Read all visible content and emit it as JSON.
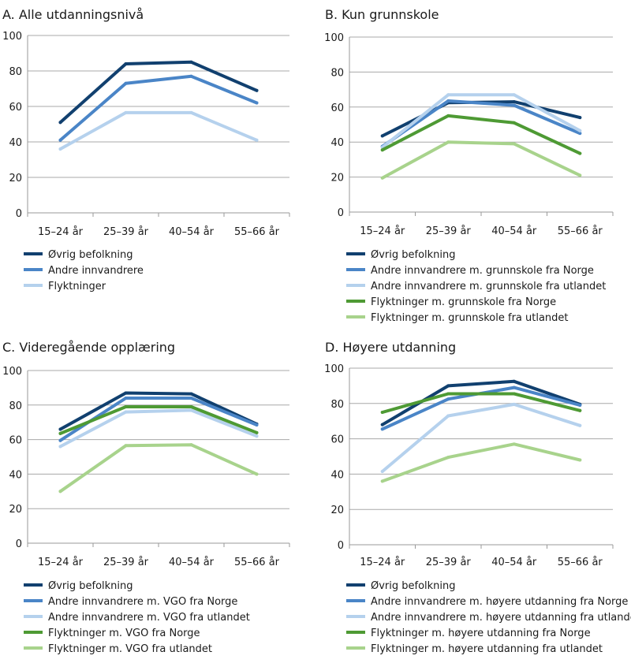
{
  "chart_data": [
    {
      "type": "line",
      "title": "A. Alle utdanningsnivå",
      "categories": [
        "15–24 år",
        "25–39 år",
        "40–54 år",
        "55–66 år"
      ],
      "ylim": [
        0,
        100
      ],
      "yticks": [
        0,
        20,
        40,
        60,
        80,
        100
      ],
      "grid": true,
      "legend": "bottom",
      "series": [
        {
          "name": "Øvrig befolkning",
          "color": "#11406f",
          "values": [
            51,
            84,
            85,
            69
          ]
        },
        {
          "name": "Andre innvandrere",
          "color": "#4a85c7",
          "values": [
            41,
            73,
            77,
            62
          ]
        },
        {
          "name": "Flyktninger",
          "color": "#b5d1ed",
          "values": [
            36,
            56.5,
            56.5,
            41
          ]
        }
      ]
    },
    {
      "type": "line",
      "title": "B. Kun grunnskole",
      "categories": [
        "15–24 år",
        "25–39 år",
        "40–54 år",
        "55–66 år"
      ],
      "ylim": [
        0,
        100
      ],
      "yticks": [
        0,
        20,
        40,
        60,
        80,
        100
      ],
      "grid": true,
      "legend": "bottom",
      "series": [
        {
          "name": "Øvrig befolkning",
          "color": "#11406f",
          "values": [
            43.5,
            62.5,
            63,
            54
          ]
        },
        {
          "name": "Andre innvandrere m. grunnskole fra Norge",
          "color": "#4a85c7",
          "values": [
            37.5,
            63.5,
            61,
            45
          ]
        },
        {
          "name": "Andre innvandrere m. grunnskole fra utlandet",
          "color": "#b5d1ed",
          "values": [
            37,
            67,
            67,
            46.5
          ]
        },
        {
          "name": "Flyktninger m. grunnskole fra Norge",
          "color": "#4e9a34",
          "values": [
            35.5,
            55,
            51,
            33.5
          ]
        },
        {
          "name": "Flyktninger m. grunnskole fra utlandet",
          "color": "#a8d38c",
          "values": [
            19.5,
            40,
            39,
            21
          ]
        }
      ]
    },
    {
      "type": "line",
      "title": "C. Videregående opplæring",
      "categories": [
        "15–24 år",
        "25–39 år",
        "40–54 år",
        "55–66 år"
      ],
      "ylim": [
        0,
        100
      ],
      "yticks": [
        0,
        20,
        40,
        60,
        80,
        100
      ],
      "grid": true,
      "legend": "bottom",
      "series": [
        {
          "name": "Øvrig befolkning",
          "color": "#11406f",
          "values": [
            66,
            87,
            86.5,
            69
          ]
        },
        {
          "name": "Andre innvandrere m. VGO fra Norge",
          "color": "#4a85c7",
          "values": [
            59.5,
            84,
            84,
            68.5
          ]
        },
        {
          "name": "Andre innvandrere m. VGO fra utlandet",
          "color": "#b5d1ed",
          "values": [
            56,
            76,
            77,
            62
          ]
        },
        {
          "name": "Flyktninger m. VGO fra Norge",
          "color": "#4e9a34",
          "values": [
            63.5,
            79,
            79,
            64
          ]
        },
        {
          "name": "Flyktninger m. VGO fra utlandet",
          "color": "#a8d38c",
          "values": [
            30,
            56.5,
            57,
            40
          ]
        }
      ]
    },
    {
      "type": "line",
      "title": "D. Høyere utdanning",
      "categories": [
        "15–24 år",
        "25–39 år",
        "40–54 år",
        "55–66 år"
      ],
      "ylim": [
        0,
        100
      ],
      "yticks": [
        0,
        20,
        40,
        60,
        80,
        100
      ],
      "grid": true,
      "legend": "bottom",
      "series": [
        {
          "name": "Øvrig befolkning",
          "color": "#11406f",
          "values": [
            68,
            90,
            92.5,
            79.5
          ]
        },
        {
          "name": "Andre innvandrere m. høyere utdanning fra Norge",
          "color": "#4a85c7",
          "values": [
            65.5,
            82.5,
            89,
            79
          ]
        },
        {
          "name": "Andre innvandrere m. høyere utdanning fra utlandet",
          "color": "#b5d1ed",
          "values": [
            41.5,
            73,
            79.5,
            67.5
          ]
        },
        {
          "name": "Flyktninger m. høyere utdanning fra Norge",
          "color": "#4e9a34",
          "values": [
            75,
            85.5,
            85.5,
            76
          ]
        },
        {
          "name": "Flyktninger m. høyere utdanning fra utlandet",
          "color": "#a8d38c",
          "values": [
            36,
            49.5,
            57,
            48
          ]
        }
      ]
    }
  ]
}
